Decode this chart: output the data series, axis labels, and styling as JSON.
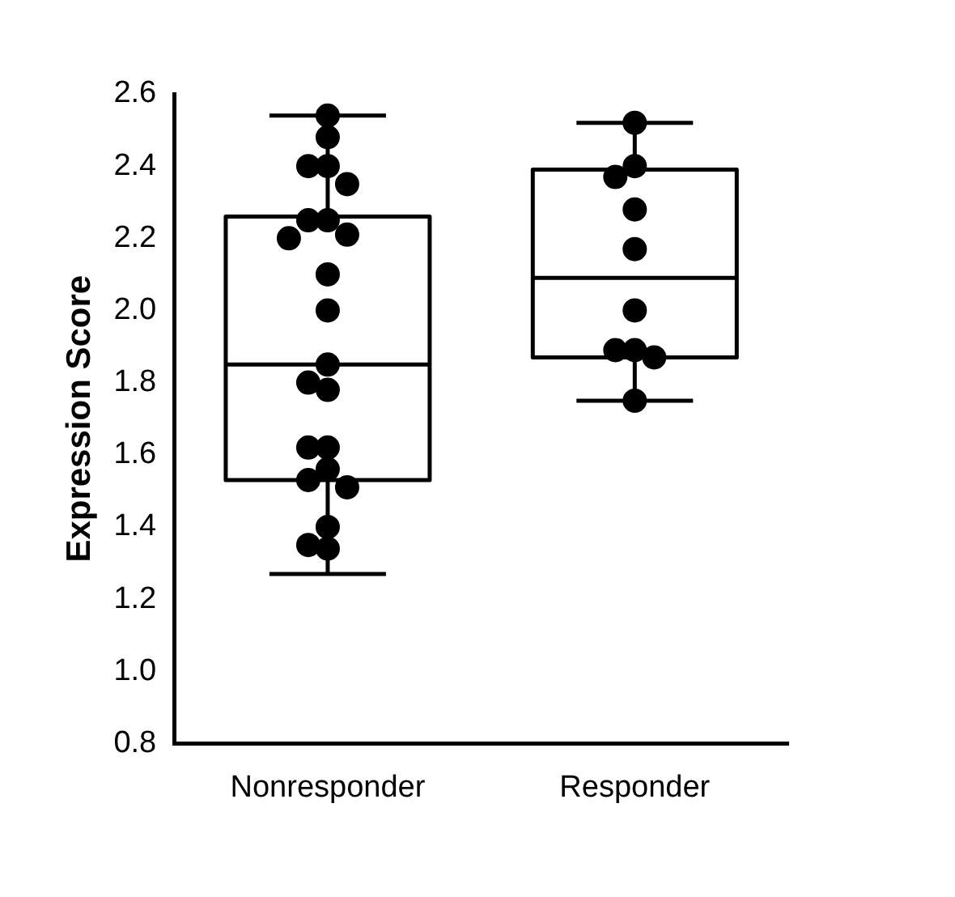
{
  "chart_data": {
    "type": "box",
    "ylabel": "Expression Score",
    "categories": [
      "Nonresponder",
      "Responder"
    ],
    "boxes": [
      {
        "low": 1.27,
        "q1": 1.53,
        "median": 1.85,
        "q3": 2.26,
        "high": 2.54
      },
      {
        "low": 1.75,
        "q1": 1.87,
        "median": 2.09,
        "q3": 2.39,
        "high": 2.52
      }
    ],
    "series": [
      {
        "type": "scatter",
        "color": "#000000",
        "x": [
          "Nonresponder",
          "Nonresponder",
          "Nonresponder",
          "Nonresponder",
          "Nonresponder",
          "Nonresponder",
          "Nonresponder",
          "Nonresponder",
          "Nonresponder",
          "Nonresponder",
          "Nonresponder",
          "Nonresponder",
          "Nonresponder",
          "Nonresponder",
          "Nonresponder",
          "Nonresponder",
          "Nonresponder",
          "Nonresponder",
          "Nonresponder",
          "Nonresponder",
          "Nonresponder",
          "Nonresponder",
          "Responder",
          "Responder",
          "Responder",
          "Responder",
          "Responder",
          "Responder",
          "Responder",
          "Responder",
          "Responder",
          "Responder"
        ],
        "values": [
          2.54,
          2.48,
          2.4,
          2.4,
          2.35,
          2.25,
          2.25,
          2.21,
          2.2,
          2.1,
          2.0,
          1.85,
          1.8,
          1.78,
          1.62,
          1.62,
          1.56,
          1.53,
          1.51,
          1.4,
          1.35,
          1.34,
          2.52,
          2.4,
          2.37,
          2.28,
          2.17,
          2.0,
          1.89,
          1.89,
          1.87,
          1.75
        ]
      }
    ],
    "marker": "circle",
    "ylim": [
      0.8,
      2.6
    ],
    "yticks": [
      0.8,
      {
        "value": 1,
        "label": "1.0"
      },
      1.2,
      1.4,
      1.6,
      1.8,
      {
        "value": 2,
        "label": "2.0"
      },
      2.2,
      2.4,
      2.6
    ],
    "grid": false,
    "legend": false
  }
}
